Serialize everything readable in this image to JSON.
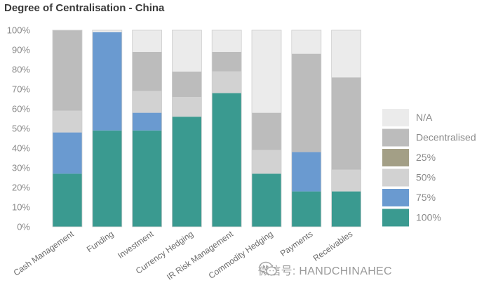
{
  "title": "Degree of Centralisation - China",
  "watermark": {
    "text": "微信号: HANDCHINAHEC"
  },
  "chart_data": {
    "type": "bar",
    "stacked": true,
    "title": "Degree of Centralisation - China",
    "categories": [
      "Cash Management",
      "Funding",
      "Investment",
      "Currency Hedging",
      "IR Risk Management",
      "Commodity Hedging",
      "Payments",
      "Receivables"
    ],
    "series": [
      {
        "name": "100%",
        "color": "#3a9a90",
        "values": [
          27,
          49,
          49,
          56,
          68,
          27,
          18,
          18
        ]
      },
      {
        "name": "75%",
        "color": "#6a9ad0",
        "values": [
          21,
          50,
          9,
          0,
          0,
          0,
          20,
          0
        ]
      },
      {
        "name": "50%",
        "color": "#d2d2d2",
        "values": [
          11,
          0,
          11,
          10,
          11,
          12,
          0,
          11
        ]
      },
      {
        "name": "25%",
        "color": "#a39f86",
        "values": [
          0,
          0,
          0,
          0,
          0,
          0,
          0,
          0
        ]
      },
      {
        "name": "Decentralised",
        "color": "#bcbcbc",
        "values": [
          41,
          0,
          20,
          13,
          10,
          19,
          50,
          47
        ]
      },
      {
        "name": "N/A",
        "color": "#ebebeb",
        "values": [
          0,
          1,
          11,
          21,
          11,
          42,
          12,
          24
        ]
      }
    ],
    "legend_order": [
      "N/A",
      "Decentralised",
      "25%",
      "50%",
      "75%",
      "100%"
    ],
    "legend_position": "right",
    "yticks": [
      "0%",
      "10%",
      "20%",
      "30%",
      "40%",
      "50%",
      "60%",
      "70%",
      "80%",
      "90%",
      "100%"
    ],
    "ylim": [
      0,
      100
    ],
    "grid": false
  }
}
